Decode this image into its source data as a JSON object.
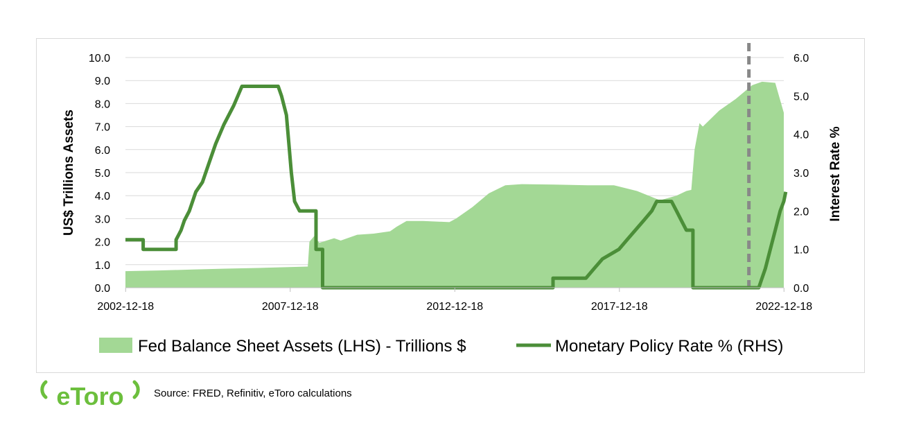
{
  "footer": {
    "source": "Source: FRED, Refinitiv, eToro calculations"
  },
  "logo": {
    "text": "eToro",
    "color": "#6cbf3d"
  },
  "colors": {
    "area": "#a3d895",
    "line": "#4b8e38",
    "marker": "#888888",
    "grid": "#d9d9d9"
  },
  "chart_data": {
    "type": "area",
    "x_ticks": [
      "2002-12-18",
      "2007-12-18",
      "2012-12-18",
      "2017-12-18",
      "2022-12-18"
    ],
    "xlim": [
      2002.96,
      2022.96
    ],
    "ylabel_left": "US$ Trillions Assets",
    "ylabel_right": "Interest Rate %",
    "ylim_left": [
      0,
      10
    ],
    "ylim_right": [
      0,
      6
    ],
    "y_ticks_left": [
      "0.0",
      "1.0",
      "2.0",
      "3.0",
      "4.0",
      "5.0",
      "6.0",
      "7.0",
      "8.0",
      "9.0",
      "10.0"
    ],
    "y_ticks_right": [
      "0.0",
      "1.0",
      "2.0",
      "3.0",
      "4.0",
      "5.0",
      "6.0"
    ],
    "grid": "horizontal",
    "legend_position": "bottom",
    "vertical_marker_x": 2021.9,
    "series": [
      {
        "name": "Fed Balance Sheet Assets (LHS) - Trillions $",
        "type": "area",
        "axis": "left",
        "points": [
          [
            2002.96,
            0.72
          ],
          [
            2004.0,
            0.75
          ],
          [
            2005.0,
            0.79
          ],
          [
            2006.0,
            0.83
          ],
          [
            2007.0,
            0.86
          ],
          [
            2008.5,
            0.92
          ],
          [
            2008.55,
            2.0
          ],
          [
            2008.7,
            2.25
          ],
          [
            2008.85,
            1.95
          ],
          [
            2009.3,
            2.15
          ],
          [
            2009.5,
            2.05
          ],
          [
            2010.0,
            2.3
          ],
          [
            2010.5,
            2.35
          ],
          [
            2011.0,
            2.45
          ],
          [
            2011.2,
            2.65
          ],
          [
            2011.5,
            2.9
          ],
          [
            2012.0,
            2.9
          ],
          [
            2012.8,
            2.85
          ],
          [
            2013.0,
            3.0
          ],
          [
            2013.5,
            3.5
          ],
          [
            2014.0,
            4.1
          ],
          [
            2014.5,
            4.45
          ],
          [
            2015.0,
            4.5
          ],
          [
            2016.0,
            4.48
          ],
          [
            2017.0,
            4.45
          ],
          [
            2017.8,
            4.45
          ],
          [
            2018.5,
            4.2
          ],
          [
            2019.2,
            3.8
          ],
          [
            2019.7,
            4.0
          ],
          [
            2020.0,
            4.2
          ],
          [
            2020.15,
            4.25
          ],
          [
            2020.25,
            6.0
          ],
          [
            2020.4,
            7.15
          ],
          [
            2020.5,
            7.0
          ],
          [
            2021.0,
            7.7
          ],
          [
            2021.5,
            8.2
          ],
          [
            2022.0,
            8.8
          ],
          [
            2022.3,
            8.95
          ],
          [
            2022.7,
            8.9
          ],
          [
            2022.96,
            7.6
          ]
        ]
      },
      {
        "name": "Monetary Policy Rate % (RHS)",
        "type": "line",
        "axis": "right",
        "points": [
          [
            2002.96,
            1.25
          ],
          [
            2003.5,
            1.25
          ],
          [
            2003.5,
            1.0
          ],
          [
            2004.5,
            1.0
          ],
          [
            2004.5,
            1.25
          ],
          [
            2004.65,
            1.5
          ],
          [
            2004.75,
            1.75
          ],
          [
            2004.9,
            2.0
          ],
          [
            2005.1,
            2.5
          ],
          [
            2005.3,
            2.75
          ],
          [
            2005.5,
            3.25
          ],
          [
            2005.7,
            3.75
          ],
          [
            2005.95,
            4.25
          ],
          [
            2006.25,
            4.75
          ],
          [
            2006.5,
            5.25
          ],
          [
            2007.6,
            5.25
          ],
          [
            2007.7,
            5.0
          ],
          [
            2007.85,
            4.5
          ],
          [
            2008.0,
            3.0
          ],
          [
            2008.1,
            2.25
          ],
          [
            2008.25,
            2.0
          ],
          [
            2008.75,
            2.0
          ],
          [
            2008.75,
            1.0
          ],
          [
            2008.95,
            1.0
          ],
          [
            2008.95,
            0.0
          ],
          [
            2015.95,
            0.0
          ],
          [
            2015.95,
            0.25
          ],
          [
            2016.95,
            0.25
          ],
          [
            2017.2,
            0.5
          ],
          [
            2017.45,
            0.75
          ],
          [
            2017.95,
            1.0
          ],
          [
            2018.2,
            1.25
          ],
          [
            2018.45,
            1.5
          ],
          [
            2018.7,
            1.75
          ],
          [
            2018.95,
            2.0
          ],
          [
            2019.1,
            2.25
          ],
          [
            2019.55,
            2.25
          ],
          [
            2019.7,
            2.0
          ],
          [
            2019.85,
            1.75
          ],
          [
            2020.0,
            1.5
          ],
          [
            2020.2,
            1.5
          ],
          [
            2020.2,
            0.0
          ],
          [
            2022.2,
            0.0
          ],
          [
            2022.3,
            0.25
          ],
          [
            2022.4,
            0.5
          ],
          [
            2022.55,
            1.0
          ],
          [
            2022.7,
            1.5
          ],
          [
            2022.85,
            2.0
          ],
          [
            2022.96,
            2.25
          ],
          [
            2023.02,
            2.5
          ]
        ]
      }
    ]
  }
}
